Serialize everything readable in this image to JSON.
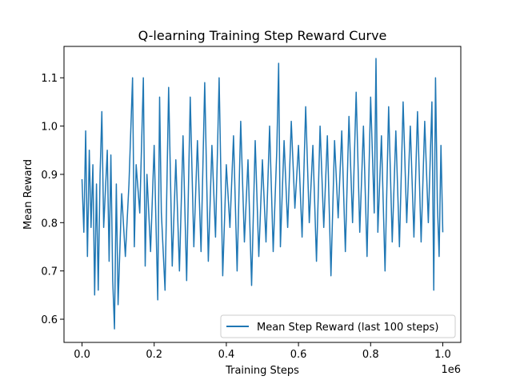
{
  "chart_data": {
    "type": "line",
    "title": "Q-learning Training Step Reward Curve",
    "xlabel": "Training Steps",
    "ylabel": "Mean Reward",
    "x_offset_label": "1e6",
    "xlim": [
      -0.05,
      1.05
    ],
    "ylim": [
      0.552,
      1.165
    ],
    "x_ticks": [
      0.0,
      0.2,
      0.4,
      0.6,
      0.8,
      1.0
    ],
    "x_tick_labels": [
      "0.0",
      "0.2",
      "0.4",
      "0.6",
      "0.8",
      "1.0"
    ],
    "y_ticks": [
      0.6,
      0.7,
      0.8,
      0.9,
      1.0,
      1.1
    ],
    "y_tick_labels": [
      "0.6",
      "0.7",
      "0.8",
      "0.9",
      "1.0",
      "1.1"
    ],
    "grid": false,
    "legend_position": "lower-right",
    "series": [
      {
        "name": "Mean Step Reward (last 100 steps)",
        "color": "#1f77b4",
        "x": [
          0.0,
          0.005,
          0.01,
          0.015,
          0.02,
          0.025,
          0.03,
          0.035,
          0.04,
          0.045,
          0.05,
          0.055,
          0.06,
          0.07,
          0.075,
          0.08,
          0.085,
          0.09,
          0.095,
          0.1,
          0.11,
          0.12,
          0.13,
          0.14,
          0.145,
          0.15,
          0.16,
          0.17,
          0.175,
          0.18,
          0.19,
          0.2,
          0.21,
          0.215,
          0.22,
          0.23,
          0.24,
          0.25,
          0.26,
          0.27,
          0.28,
          0.29,
          0.3,
          0.31,
          0.32,
          0.33,
          0.34,
          0.35,
          0.36,
          0.37,
          0.38,
          0.39,
          0.4,
          0.41,
          0.42,
          0.43,
          0.44,
          0.45,
          0.46,
          0.47,
          0.48,
          0.49,
          0.5,
          0.51,
          0.52,
          0.53,
          0.54,
          0.545,
          0.55,
          0.56,
          0.57,
          0.58,
          0.59,
          0.6,
          0.61,
          0.62,
          0.63,
          0.64,
          0.65,
          0.66,
          0.67,
          0.68,
          0.69,
          0.7,
          0.71,
          0.72,
          0.73,
          0.74,
          0.75,
          0.76,
          0.77,
          0.78,
          0.79,
          0.8,
          0.81,
          0.815,
          0.82,
          0.83,
          0.84,
          0.85,
          0.86,
          0.87,
          0.88,
          0.89,
          0.9,
          0.91,
          0.92,
          0.93,
          0.94,
          0.95,
          0.96,
          0.97,
          0.975,
          0.98,
          0.985,
          0.99,
          0.995,
          1.0
        ],
        "y": [
          0.89,
          0.78,
          0.99,
          0.73,
          0.95,
          0.79,
          0.92,
          0.65,
          0.88,
          0.66,
          0.9,
          1.03,
          0.79,
          0.95,
          0.72,
          0.94,
          0.68,
          0.58,
          0.88,
          0.63,
          0.86,
          0.73,
          0.88,
          1.1,
          0.75,
          0.92,
          0.82,
          1.1,
          0.71,
          0.9,
          0.74,
          0.96,
          0.64,
          1.06,
          0.82,
          0.66,
          1.08,
          0.71,
          0.93,
          0.7,
          0.98,
          0.68,
          1.06,
          0.75,
          0.97,
          0.74,
          1.09,
          0.72,
          0.96,
          0.77,
          1.1,
          0.69,
          0.92,
          0.79,
          0.98,
          0.7,
          1.01,
          0.76,
          0.93,
          0.67,
          0.97,
          0.73,
          0.93,
          0.76,
          1.0,
          0.74,
          0.95,
          1.13,
          0.75,
          0.97,
          0.79,
          1.01,
          0.83,
          0.96,
          0.77,
          1.04,
          0.8,
          0.96,
          0.72,
          1.0,
          0.79,
          0.98,
          0.69,
          0.97,
          0.81,
          0.99,
          0.74,
          1.02,
          0.8,
          1.07,
          0.78,
          1.0,
          0.73,
          1.06,
          0.82,
          1.14,
          0.78,
          0.98,
          0.7,
          1.04,
          0.76,
          0.99,
          0.75,
          1.05,
          0.8,
          1.0,
          0.77,
          1.03,
          0.76,
          1.01,
          0.8,
          1.05,
          0.66,
          1.1,
          0.84,
          0.73,
          0.96,
          0.78
        ]
      }
    ]
  }
}
